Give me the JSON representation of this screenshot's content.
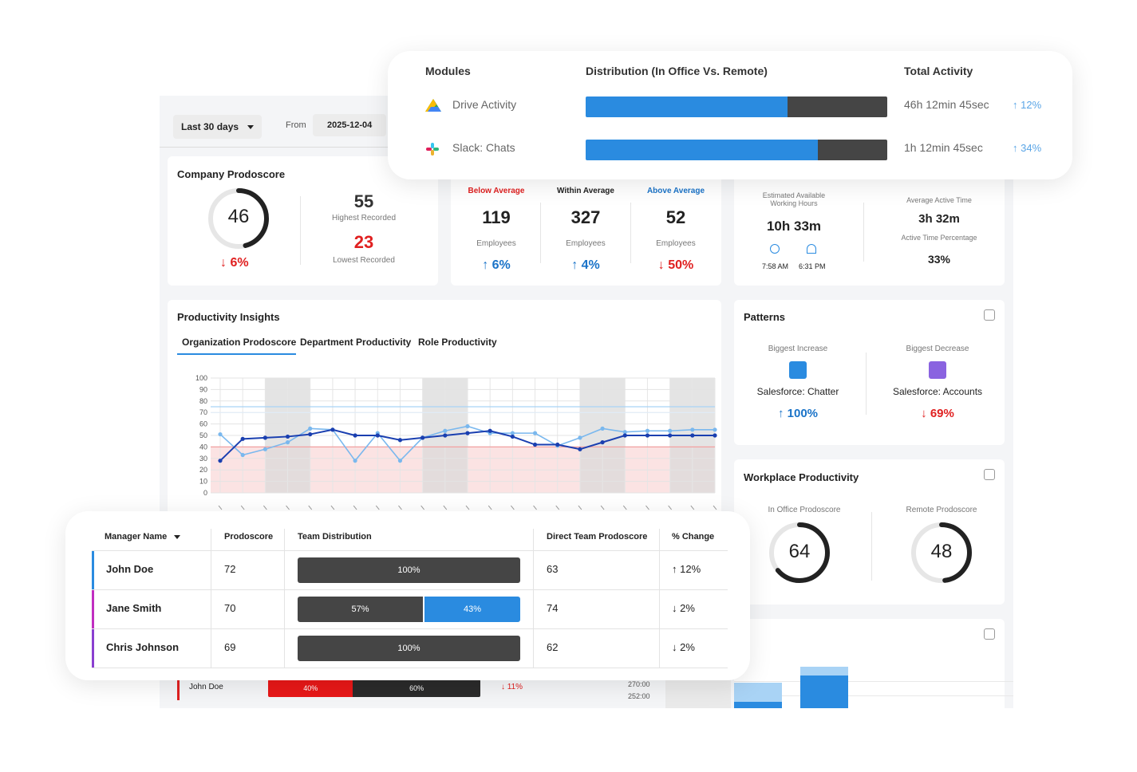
{
  "filters": {
    "range_label": "Last 30 days",
    "from_label": "From",
    "from_date": "2025-12-04"
  },
  "company_prodoscore": {
    "title": "Company Prodoscore",
    "score": "46",
    "score_fill": 0.46,
    "change": "6%",
    "highest_value": "55",
    "highest_label": "Highest Recorded",
    "lowest_value": "23",
    "lowest_label": "Lowest Recorded"
  },
  "employee_groups": [
    {
      "label": "Below Average",
      "count": "119",
      "unit": "Employees",
      "change": "6%",
      "dir": "up",
      "color": "#e02020"
    },
    {
      "label": "Within Average",
      "count": "327",
      "unit": "Employees",
      "change": "4%",
      "dir": "up",
      "color": "#222222"
    },
    {
      "label": "Above Average",
      "count": "52",
      "unit": "Employees",
      "change": "50%",
      "dir": "down",
      "color": "#1a73c8"
    }
  ],
  "working_hours": {
    "est_label": "Estimated Available Working Hours",
    "est_value": "10h 33m",
    "start_time": "7:58 AM",
    "end_time": "6:31 PM",
    "avg_label": "Average Active Time",
    "avg_value": "3h 32m",
    "pct_label": "Active Time Percentage",
    "pct_value": "33%"
  },
  "insights": {
    "title": "Productivity Insights",
    "tabs": [
      "Organization Prodoscore",
      "Department Productivity",
      "Role Productivity"
    ],
    "active_tab": 0
  },
  "chart_data": {
    "type": "line",
    "ylim": [
      0,
      100
    ],
    "yticks": [
      0,
      10,
      20,
      30,
      40,
      50,
      60,
      70,
      80,
      90,
      100
    ],
    "x": [
      0,
      1,
      2,
      3,
      4,
      5,
      6,
      7,
      8,
      9,
      10,
      11,
      12,
      13,
      14,
      15,
      16,
      17,
      18,
      19,
      20,
      21,
      22
    ],
    "series": [
      {
        "values": [
          51,
          33,
          38,
          44,
          56,
          55,
          28,
          52,
          28,
          48,
          54,
          58,
          52,
          52,
          52,
          41,
          48,
          56,
          53,
          54,
          54,
          55,
          55
        ],
        "color": "#7ab8ee"
      },
      {
        "values": [
          28,
          47,
          48,
          49,
          51,
          55,
          50,
          50,
          46,
          48,
          50,
          52,
          54,
          49,
          42,
          42,
          38,
          44,
          50,
          50,
          50,
          50,
          50
        ],
        "color": "#1a3fb0"
      }
    ],
    "reference_lines": [
      40,
      75,
      70
    ],
    "shaded_columns": [
      [
        2,
        4
      ],
      [
        9,
        11
      ],
      [
        16,
        18
      ],
      [
        20,
        22
      ]
    ]
  },
  "patterns": {
    "title": "Patterns",
    "increase_label": "Biggest Increase",
    "increase_module": "Salesforce: Chatter",
    "increase_change": "100%",
    "decrease_label": "Biggest Decrease",
    "decrease_module": "Salesforce: Accounts",
    "decrease_change": "69%"
  },
  "workplace": {
    "title": "Workplace Productivity",
    "office_label": "In Office Prodoscore",
    "office_score": "64",
    "office_fill": 0.64,
    "remote_label": "Remote Prodoscore",
    "remote_score": "48",
    "remote_fill": 0.48
  },
  "modules_card": {
    "headers": {
      "modules": "Modules",
      "distribution": "Distribution (In Office Vs. Remote)",
      "total": "Total Activity"
    },
    "rows": [
      {
        "name": "Drive Activity",
        "icon": "google-drive-icon",
        "office": 0.67,
        "total": "46h 12min 45sec",
        "change": "12%"
      },
      {
        "name": "Slack: Chats",
        "icon": "slack-icon",
        "office": 0.77,
        "total": "1h 12min 45sec",
        "change": "34%"
      }
    ]
  },
  "manager_table": {
    "headers": {
      "manager": "Manager Name",
      "score": "Prodoscore",
      "dist": "Team Distribution",
      "direct": "Direct Team Prodoscore",
      "change": "% Change"
    },
    "rows": [
      {
        "name": "John Doe",
        "score": "72",
        "dark_pct": 1.0,
        "dark_label": "100%",
        "blue_label": "",
        "direct": "63",
        "change": "12%",
        "dir": "up",
        "accent": "#2a8be0"
      },
      {
        "name": "Jane Smith",
        "score": "70",
        "dark_pct": 0.57,
        "dark_label": "57%",
        "blue_label": "43%",
        "direct": "74",
        "change": "2%",
        "dir": "down",
        "accent": "#c12ec1"
      },
      {
        "name": "Chris Johnson",
        "score": "69",
        "dark_pct": 1.0,
        "dark_label": "100%",
        "blue_label": "",
        "direct": "62",
        "change": "2%",
        "dir": "down",
        "accent": "#8a3fd0"
      }
    ]
  },
  "underlay_row": {
    "name": "John Doe",
    "red_label": "40%",
    "dark_label": "60%",
    "change": "11%"
  },
  "underlay_axis": [
    "270:00",
    "252:00"
  ]
}
